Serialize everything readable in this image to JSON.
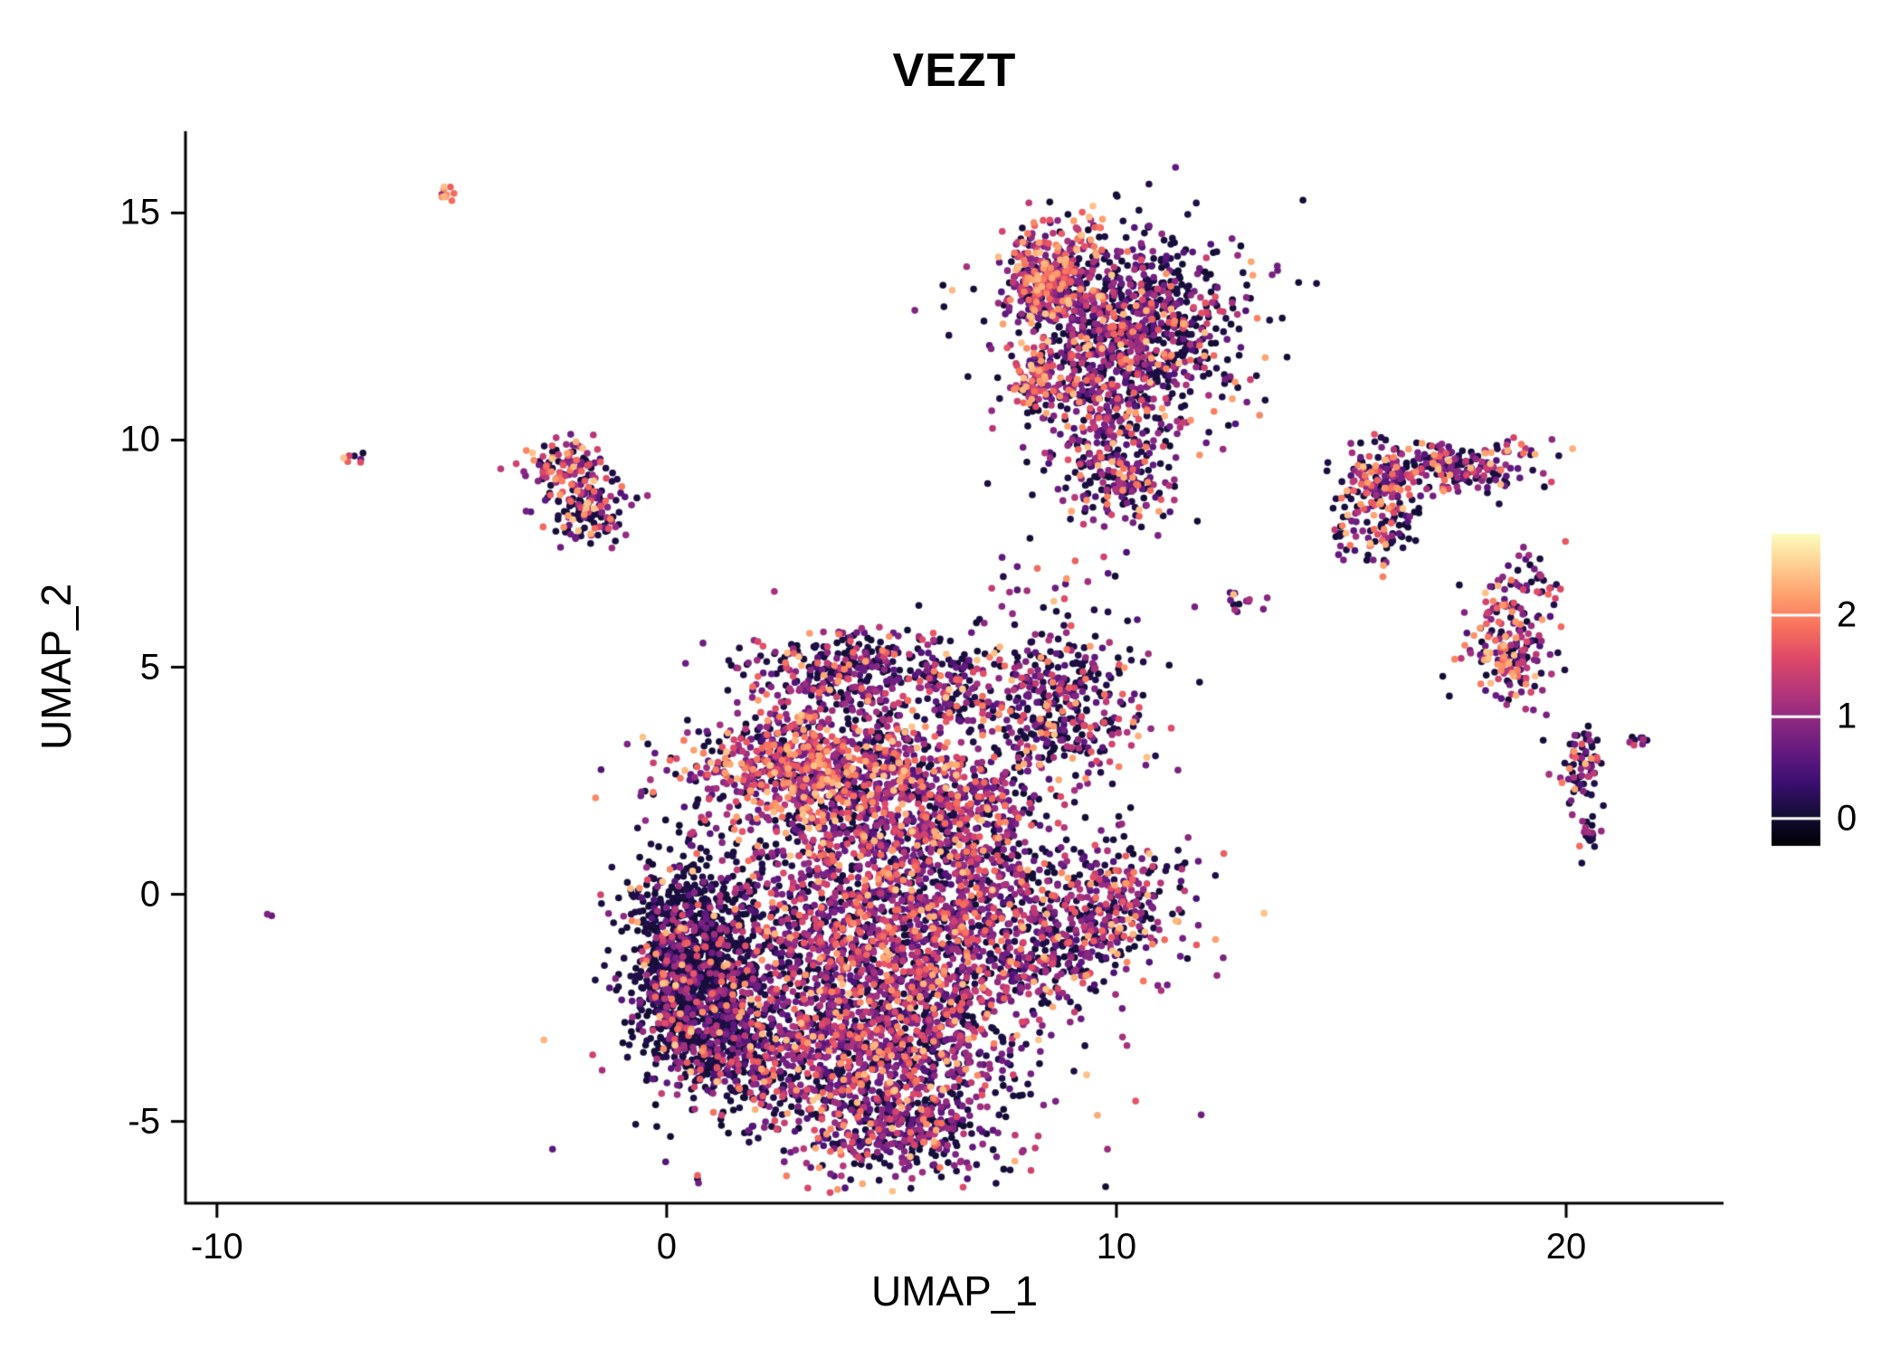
{
  "chart_data": {
    "type": "scatter",
    "title": "VEZT",
    "xlabel": "UMAP_1",
    "ylabel": "UMAP_2",
    "xlim": [
      -10.7,
      23.5
    ],
    "ylim": [
      -6.8,
      16.8
    ],
    "background": "#ffffff",
    "axis_color": "#000000",
    "grid": false,
    "point_radius": 3.8,
    "x_axis": {
      "ticks": [
        {
          "value": -10,
          "label": "-10"
        },
        {
          "value": 0,
          "label": "0"
        },
        {
          "value": 10,
          "label": "10"
        },
        {
          "value": 20,
          "label": "20"
        }
      ]
    },
    "y_axis": {
      "ticks": [
        {
          "value": 15,
          "label": "15"
        },
        {
          "value": 10,
          "label": "10"
        },
        {
          "value": 5,
          "label": "5"
        },
        {
          "value": 0,
          "label": "0"
        },
        {
          "value": -5,
          "label": "-5"
        }
      ]
    },
    "colorbar": {
      "position": "right",
      "colormap": "magma",
      "range": [
        -0.27,
        2.8
      ],
      "ticks": [
        {
          "value": 2,
          "label": "2"
        },
        {
          "value": 1,
          "label": "1"
        },
        {
          "value": 0,
          "label": "0"
        }
      ]
    },
    "colormap_stops": [
      "#000004",
      "#140e36",
      "#3b0f70",
      "#641a80",
      "#8c2981",
      "#b73779",
      "#de4968",
      "#f7705c",
      "#fe9f6d",
      "#fecf92",
      "#fcfdbf"
    ],
    "value_bins": [
      [
        0.0,
        0.15
      ],
      [
        0.45,
        1.15
      ],
      [
        1.15,
        1.85
      ],
      [
        1.85,
        2.45
      ]
    ],
    "clusters": [
      {
        "name": "blob-left-dark",
        "cx": 0.7,
        "cy": -1.4,
        "sx": 0.75,
        "sy": 1.2,
        "n": 950,
        "weights": [
          0.8,
          0.14,
          0.04,
          0.02
        ]
      },
      {
        "name": "blob-left-rim",
        "cx": 0.05,
        "cy": -1.9,
        "sx": 0.3,
        "sy": 0.9,
        "n": 220,
        "weights": [
          0.62,
          0.2,
          0.1,
          0.08
        ]
      },
      {
        "name": "blob-left-lower",
        "cx": 1.3,
        "cy": -3.2,
        "sx": 0.8,
        "sy": 0.8,
        "n": 420,
        "weights": [
          0.6,
          0.25,
          0.1,
          0.05
        ]
      },
      {
        "name": "blob-core",
        "cx": 4.4,
        "cy": -1.2,
        "sx": 1.7,
        "sy": 1.6,
        "n": 1500,
        "weights": [
          0.32,
          0.42,
          0.18,
          0.08
        ]
      },
      {
        "name": "blob-bottom",
        "cx": 4.7,
        "cy": -3.9,
        "sx": 1.5,
        "sy": 1.0,
        "n": 850,
        "weights": [
          0.34,
          0.42,
          0.16,
          0.08
        ]
      },
      {
        "name": "blob-bottom-tip",
        "cx": 5.1,
        "cy": -5.3,
        "sx": 0.9,
        "sy": 0.4,
        "n": 200,
        "weights": [
          0.4,
          0.4,
          0.14,
          0.06
        ]
      },
      {
        "name": "blob-top-band",
        "cx": 3.1,
        "cy": 2.9,
        "sx": 1.5,
        "sy": 0.6,
        "n": 650,
        "weights": [
          0.22,
          0.33,
          0.25,
          0.2
        ]
      },
      {
        "name": "blob-upper",
        "cx": 4.3,
        "cy": 1.6,
        "sx": 1.5,
        "sy": 0.9,
        "n": 520,
        "weights": [
          0.3,
          0.42,
          0.19,
          0.09
        ]
      },
      {
        "name": "blob-right",
        "cx": 6.9,
        "cy": -0.6,
        "sx": 0.8,
        "sy": 1.7,
        "n": 480,
        "weights": [
          0.32,
          0.42,
          0.17,
          0.09
        ]
      },
      {
        "name": "blob-right-up",
        "cx": 6.6,
        "cy": 1.8,
        "sx": 0.7,
        "sy": 0.8,
        "n": 260,
        "weights": [
          0.3,
          0.44,
          0.17,
          0.09
        ]
      },
      {
        "name": "cap-arc",
        "cx": 4.2,
        "cy": 5.0,
        "sx": 1.25,
        "sy": 0.42,
        "n": 300,
        "weights": [
          0.42,
          0.38,
          0.13,
          0.07
        ]
      },
      {
        "name": "cap-right-end",
        "cx": 6.4,
        "cy": 4.4,
        "sx": 0.3,
        "sy": 0.4,
        "n": 60,
        "weights": [
          0.4,
          0.4,
          0.13,
          0.07
        ]
      },
      {
        "name": "cap-scatter",
        "cx": 4.2,
        "cy": 4.2,
        "sx": 1.2,
        "sy": 0.4,
        "n": 90,
        "weights": [
          0.38,
          0.38,
          0.16,
          0.08
        ]
      },
      {
        "name": "right-top",
        "cx": 8.7,
        "cy": 4.1,
        "sx": 1.0,
        "sy": 0.85,
        "n": 420,
        "weights": [
          0.5,
          0.3,
          0.13,
          0.07
        ]
      },
      {
        "name": "right-mid",
        "cx": 9.6,
        "cy": -0.4,
        "sx": 1.0,
        "sy": 0.8,
        "n": 430,
        "weights": [
          0.38,
          0.38,
          0.16,
          0.08
        ]
      },
      {
        "name": "right-mid-tail",
        "cx": 8.3,
        "cy": -1.6,
        "sx": 0.5,
        "sy": 0.5,
        "n": 90,
        "weights": [
          0.4,
          0.38,
          0.14,
          0.08
        ]
      },
      {
        "name": "top-main",
        "cx": 10.3,
        "cy": 12.7,
        "sx": 1.15,
        "sy": 0.85,
        "n": 780,
        "weights": [
          0.48,
          0.32,
          0.13,
          0.07
        ]
      },
      {
        "name": "top-left-dense",
        "cx": 8.45,
        "cy": 13.5,
        "sx": 0.4,
        "sy": 0.55,
        "n": 320,
        "weights": [
          0.2,
          0.3,
          0.28,
          0.22
        ]
      },
      {
        "name": "top-mid-lower",
        "cx": 9.9,
        "cy": 10.7,
        "sx": 0.85,
        "sy": 0.9,
        "n": 330,
        "weights": [
          0.4,
          0.36,
          0.15,
          0.09
        ]
      },
      {
        "name": "top-tail",
        "cx": 10.0,
        "cy": 9.1,
        "sx": 0.55,
        "sy": 0.5,
        "n": 130,
        "weights": [
          0.4,
          0.36,
          0.15,
          0.09
        ]
      },
      {
        "name": "top-cap",
        "cx": 9.35,
        "cy": 14.55,
        "sx": 0.18,
        "sy": 0.28,
        "n": 28,
        "weights": [
          0.08,
          0.2,
          0.32,
          0.4
        ]
      },
      {
        "name": "top-left-spur",
        "cx": 8.2,
        "cy": 11.3,
        "sx": 0.22,
        "sy": 0.45,
        "n": 90,
        "weights": [
          0.22,
          0.32,
          0.26,
          0.2
        ]
      },
      {
        "name": "topleft-upper",
        "cx": -2.3,
        "cy": 9.45,
        "sx": 0.45,
        "sy": 0.3,
        "n": 100,
        "weights": [
          0.25,
          0.3,
          0.25,
          0.2
        ]
      },
      {
        "name": "topleft-lower",
        "cx": -1.75,
        "cy": 8.5,
        "sx": 0.5,
        "sy": 0.35,
        "n": 130,
        "weights": [
          0.5,
          0.28,
          0.14,
          0.08
        ]
      },
      {
        "name": "far-streak",
        "cx": -4.85,
        "cy": 15.4,
        "sx": 0.14,
        "sy": 0.1,
        "n": 10,
        "weights": [
          0.0,
          0.1,
          0.4,
          0.5
        ]
      },
      {
        "name": "tiny-left",
        "cx": -6.9,
        "cy": 9.65,
        "sx": 0.1,
        "sy": 0.1,
        "n": 7,
        "weights": [
          0.1,
          0.2,
          0.4,
          0.3
        ]
      },
      {
        "name": "lone-dot",
        "cx": -8.85,
        "cy": -0.45,
        "sx": 0.05,
        "sy": 0.05,
        "n": 2,
        "weights": [
          0.0,
          1.0,
          0.0,
          0.0
        ]
      },
      {
        "name": "right-a-main",
        "cx": 17.6,
        "cy": 9.45,
        "sx": 0.85,
        "sy": 0.28,
        "n": 200,
        "weights": [
          0.35,
          0.35,
          0.18,
          0.12
        ]
      },
      {
        "name": "right-a-left",
        "cx": 15.85,
        "cy": 9.05,
        "sx": 0.45,
        "sy": 0.45,
        "n": 140,
        "weights": [
          0.3,
          0.35,
          0.2,
          0.15
        ]
      },
      {
        "name": "right-a-tail",
        "cx": 16.0,
        "cy": 8.0,
        "sx": 0.4,
        "sy": 0.45,
        "n": 70,
        "weights": [
          0.38,
          0.34,
          0.17,
          0.11
        ]
      },
      {
        "name": "right-a-west",
        "cx": 15.0,
        "cy": 7.8,
        "sx": 0.15,
        "sy": 0.2,
        "n": 12,
        "weights": [
          0.4,
          0.35,
          0.15,
          0.1
        ]
      },
      {
        "name": "right-b-top",
        "cx": 19.0,
        "cy": 6.8,
        "sx": 0.45,
        "sy": 0.4,
        "n": 55,
        "weights": [
          0.36,
          0.36,
          0.16,
          0.12
        ]
      },
      {
        "name": "right-b-main",
        "cx": 18.75,
        "cy": 5.3,
        "sx": 0.5,
        "sy": 0.55,
        "n": 170,
        "weights": [
          0.3,
          0.33,
          0.2,
          0.17
        ]
      },
      {
        "name": "c-upper",
        "cx": 20.35,
        "cy": 2.85,
        "sx": 0.22,
        "sy": 0.38,
        "n": 70,
        "weights": [
          0.5,
          0.3,
          0.12,
          0.08
        ]
      },
      {
        "name": "c-lower",
        "cx": 20.45,
        "cy": 1.3,
        "sx": 0.16,
        "sy": 0.22,
        "n": 20,
        "weights": [
          0.55,
          0.3,
          0.1,
          0.05
        ]
      },
      {
        "name": "c-streak",
        "cx": 21.55,
        "cy": 3.4,
        "sx": 0.16,
        "sy": 0.07,
        "n": 9,
        "weights": [
          0.2,
          0.6,
          0.15,
          0.05
        ]
      },
      {
        "name": "connector-mid",
        "cx": 12.75,
        "cy": 6.5,
        "sx": 0.45,
        "sy": 0.12,
        "n": 14,
        "weights": [
          0.2,
          0.6,
          0.15,
          0.05
        ]
      },
      {
        "name": "sparse-between",
        "cx": 8.6,
        "cy": 6.9,
        "sx": 0.7,
        "sy": 0.9,
        "n": 30,
        "weights": [
          0.5,
          0.35,
          0.1,
          0.05
        ]
      },
      {
        "name": "blob-halo",
        "cx": 4.2,
        "cy": -1.5,
        "sx": 3.2,
        "sy": 3.0,
        "n": 150,
        "weights": [
          0.45,
          0.35,
          0.13,
          0.07
        ]
      },
      {
        "name": "top-halo",
        "cx": 10.3,
        "cy": 12.0,
        "sx": 1.8,
        "sy": 1.6,
        "n": 120,
        "weights": [
          0.55,
          0.3,
          0.1,
          0.05
        ]
      }
    ]
  }
}
